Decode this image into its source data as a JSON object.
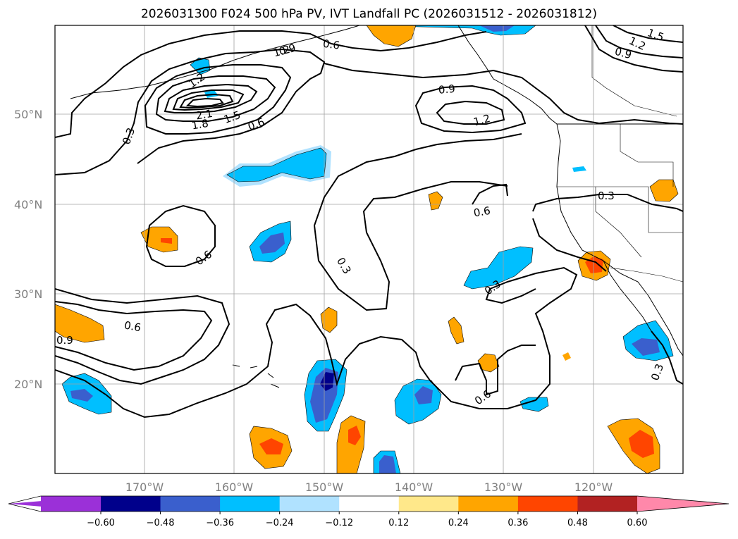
{
  "title": "2026031300 F024 500 hPa PV, IVT Landfall PC (2026031512 - 2026031812)",
  "map": {
    "lat_labels": [
      "50°N",
      "40°N",
      "30°N",
      "20°N"
    ],
    "lon_labels": [
      "170°W",
      "160°W",
      "150°W",
      "140°W",
      "130°W",
      "120°W"
    ],
    "grid": true
  },
  "contour_labels": [
    "0.3",
    "0.6",
    "0.9",
    "1.2",
    "1.5",
    "1.8",
    "2.1",
    "1.2",
    "0.6",
    "0.3",
    "0.9",
    "1.2",
    "1.5",
    "0.9",
    "1.2",
    "0.6",
    "0.3",
    "0.6",
    "0.6",
    "0.3",
    "0.3",
    "0.6",
    "0.9",
    "0.6",
    "0.3",
    "0.3"
  ],
  "colorbar": {
    "ticks": [
      "−0.60",
      "−0.48",
      "−0.36",
      "−0.24",
      "−0.12",
      "0.12",
      "0.24",
      "0.36",
      "0.48",
      "0.60"
    ],
    "colors": [
      "#9b30d8",
      "#00008b",
      "#3a5fcd",
      "#00bfff",
      "#b0e2ff",
      "#ffffff",
      "#ffe88a",
      "#ffa500",
      "#ff4500",
      "#b22222",
      "#ff88aa",
      "#ff88aa"
    ]
  }
}
